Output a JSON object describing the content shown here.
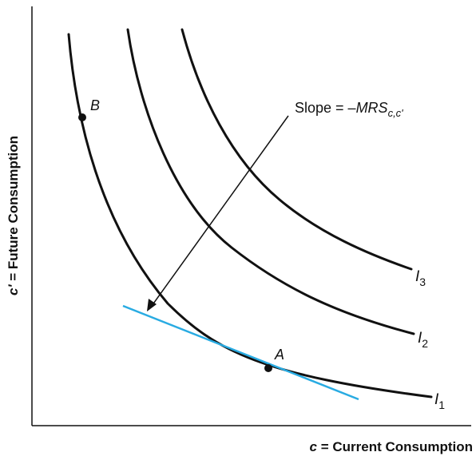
{
  "axes": {
    "x_label_var": "c",
    "x_label_text": " = Current Consumption",
    "y_label_var": "c'",
    "y_label_text": " = Future Consumption"
  },
  "curves": [
    {
      "name_base": "I",
      "name_sub": "1"
    },
    {
      "name_base": "I",
      "name_sub": "2"
    },
    {
      "name_base": "I",
      "name_sub": "3"
    }
  ],
  "points": [
    {
      "label": "A"
    },
    {
      "label": "B"
    }
  ],
  "annotation": {
    "text_prefix": "Slope = –",
    "text_var": "MRS",
    "text_sub": "c,c'"
  },
  "colors": {
    "curve": "#111111",
    "tangent": "#29abe2",
    "axis": "#111111"
  }
}
